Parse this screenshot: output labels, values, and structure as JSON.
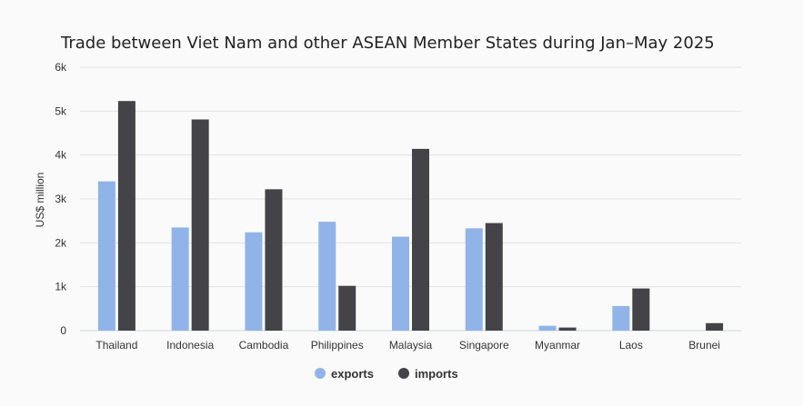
{
  "chart_data": {
    "type": "bar",
    "title": "Trade between Viet Nam and other ASEAN Member States during Jan–May 2025",
    "ylabel": "US$ million",
    "xlabel": "",
    "categories": [
      "Thailand",
      "Indonesia",
      "Cambodia",
      "Philippines",
      "Malaysia",
      "Singapore",
      "Myanmar",
      "Laos",
      "Brunei"
    ],
    "series": [
      {
        "name": "exports",
        "color": "#90b4e8",
        "values": [
          3400,
          2350,
          2240,
          2480,
          2140,
          2330,
          110,
          560,
          0
        ]
      },
      {
        "name": "imports",
        "color": "#434348",
        "values": [
          5230,
          4810,
          3220,
          1020,
          4140,
          2450,
          70,
          960,
          170
        ]
      }
    ],
    "ylim": [
      0,
      6000
    ],
    "yticks": [
      "0",
      "1k",
      "2k",
      "3k",
      "4k",
      "5k",
      "6k"
    ],
    "grid": true,
    "legend_position": "bottom"
  }
}
